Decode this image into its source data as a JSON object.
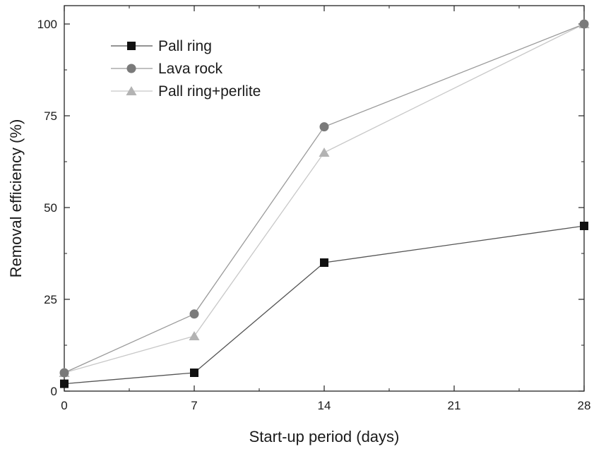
{
  "chart_data": {
    "type": "line",
    "xlabel": "Start-up period (days)",
    "ylabel": "Removal efficiency (%)",
    "xlim": [
      0,
      28
    ],
    "ylim": [
      0,
      100
    ],
    "xticks": [
      "0",
      "7",
      "14",
      "21",
      "28"
    ],
    "yticks": [
      "0",
      "25",
      "50",
      "75",
      "100"
    ],
    "grid": false,
    "legend_position": "top-left",
    "series": [
      {
        "name": "Pall ring",
        "marker": "square",
        "color": "#111111",
        "line_color": "#555555",
        "x": [
          0,
          7,
          14,
          28
        ],
        "y": [
          2,
          5,
          35,
          45
        ]
      },
      {
        "name": "Lava rock",
        "marker": "circle",
        "color": "#7a7a7a",
        "line_color": "#9a9a9a",
        "x": [
          0,
          7,
          14,
          28
        ],
        "y": [
          5,
          21,
          72,
          100
        ]
      },
      {
        "name": "Pall ring+perlite",
        "marker": "triangle",
        "color": "#b3b3b3",
        "line_color": "#c8c8c8",
        "x": [
          0,
          7,
          14,
          28
        ],
        "y": [
          5,
          15,
          65,
          100
        ]
      }
    ]
  }
}
